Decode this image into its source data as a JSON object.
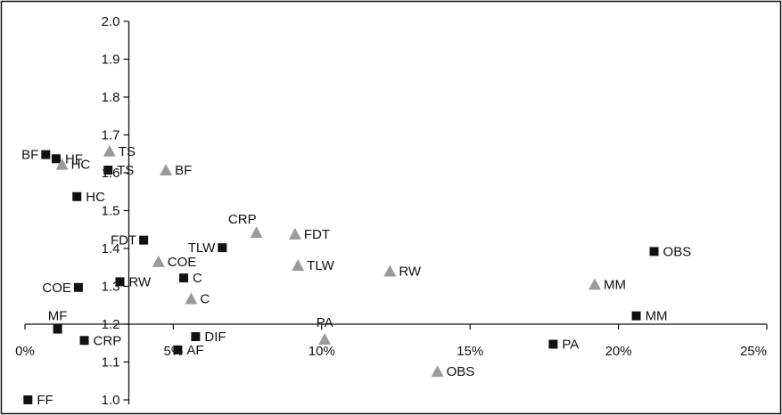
{
  "chart_data": {
    "type": "scatter",
    "title": "",
    "xlabel": "",
    "ylabel": "",
    "xlim": [
      0,
      0.25
    ],
    "ylim": [
      1.0,
      2.0
    ],
    "x_ticks": [
      0,
      0.05,
      0.1,
      0.15,
      0.2,
      0.25
    ],
    "x_tick_labels": [
      "0%",
      "5%",
      "10%",
      "15%",
      "20%",
      "25%"
    ],
    "y_ticks": [
      1.0,
      1.1,
      1.2,
      1.3,
      1.4,
      1.5,
      1.6,
      1.7,
      1.8,
      1.9,
      2.0
    ],
    "y_tick_labels": [
      "1.0",
      "1.1",
      "1.2",
      "1.3",
      "1.4",
      "1.5",
      "1.6",
      "1.7",
      "1.8",
      "1.9",
      "2.0"
    ],
    "x_axis_crosses_y_at": 1.2,
    "y_axis_crosses_x_at": 0.035,
    "grid": false,
    "legend": "none",
    "series": [
      {
        "marker": "square",
        "color": "#111111",
        "points": [
          {
            "label": "BF",
            "x": 0.007,
            "y": 1.648
          },
          {
            "label": "HF",
            "x": 0.0105,
            "y": 1.637
          },
          {
            "label": "TS",
            "x": 0.028,
            "y": 1.607
          },
          {
            "label": "HC",
            "x": 0.0175,
            "y": 1.537
          },
          {
            "label": "FDT",
            "x": 0.04,
            "y": 1.422
          },
          {
            "label": "TLW",
            "x": 0.0665,
            "y": 1.402
          },
          {
            "label": "C",
            "x": 0.0535,
            "y": 1.322
          },
          {
            "label": "RW",
            "x": 0.032,
            "y": 1.312
          },
          {
            "label": "COE",
            "x": 0.018,
            "y": 1.297
          },
          {
            "label": "MF",
            "x": 0.011,
            "y": 1.187
          },
          {
            "label": "CRP",
            "x": 0.02,
            "y": 1.157
          },
          {
            "label": "DIF",
            "x": 0.0575,
            "y": 1.167
          },
          {
            "label": "AF",
            "x": 0.0515,
            "y": 1.132
          },
          {
            "label": "FF",
            "x": 0.001,
            "y": 1.0
          },
          {
            "label": "OBS",
            "x": 0.212,
            "y": 1.392
          },
          {
            "label": "MM",
            "x": 0.206,
            "y": 1.222
          },
          {
            "label": "PA",
            "x": 0.178,
            "y": 1.147
          }
        ]
      },
      {
        "marker": "triangle",
        "color": "#9a9a9a",
        "points": [
          {
            "label": "TS",
            "x": 0.0285,
            "y": 1.657
          },
          {
            "label": "HC",
            "x": 0.0125,
            "y": 1.622
          },
          {
            "label": "BF",
            "x": 0.0475,
            "y": 1.607
          },
          {
            "label": "CRP",
            "x": 0.078,
            "y": 1.442
          },
          {
            "label": "FDT",
            "x": 0.091,
            "y": 1.438
          },
          {
            "label": "COE",
            "x": 0.045,
            "y": 1.365
          },
          {
            "label": "TLW",
            "x": 0.092,
            "y": 1.355
          },
          {
            "label": "RW",
            "x": 0.123,
            "y": 1.34
          },
          {
            "label": "C",
            "x": 0.056,
            "y": 1.267
          },
          {
            "label": "MM",
            "x": 0.192,
            "y": 1.305
          },
          {
            "label": "PA",
            "x": 0.101,
            "y": 1.16
          },
          {
            "label": "OBS",
            "x": 0.139,
            "y": 1.075
          }
        ]
      }
    ]
  }
}
